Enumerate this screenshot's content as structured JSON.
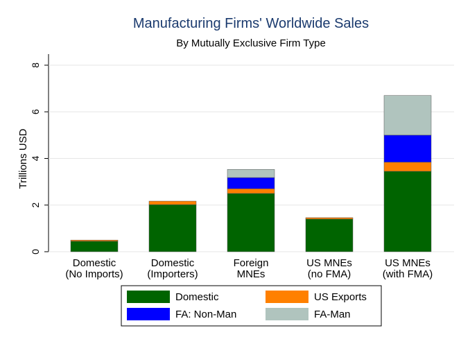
{
  "chart_data": {
    "type": "stacked_bar",
    "title": "Manufacturing Firms' Worldwide Sales",
    "subtitle": "By Mutually Exclusive Firm Type",
    "y_label": "Trillions USD",
    "categories": [
      "Domestic\n(No Imports)",
      "Domestic\n(Importers)",
      "Foreign\nMNEs",
      "US MNEs\n(no FMA)",
      "US MNEs\n(with FMA)"
    ],
    "series": [
      {
        "name": "Domestic",
        "color": "#006400",
        "values": [
          0.45,
          2.02,
          2.5,
          1.4,
          3.45
        ]
      },
      {
        "name": "US Exports",
        "color": "#ff8000",
        "values": [
          0.05,
          0.15,
          0.2,
          0.06,
          0.39
        ]
      },
      {
        "name": "FA: Non-Man",
        "color": "#0000ff",
        "values": [
          0,
          0,
          0.48,
          0,
          1.16
        ]
      },
      {
        "name": "FA-Man",
        "color": "#b0c4be",
        "values": [
          0,
          0,
          0.35,
          0,
          1.7
        ]
      }
    ],
    "ylim": [
      0,
      8
    ],
    "yticks": [
      0,
      2,
      4,
      6,
      8
    ],
    "grid": true
  }
}
